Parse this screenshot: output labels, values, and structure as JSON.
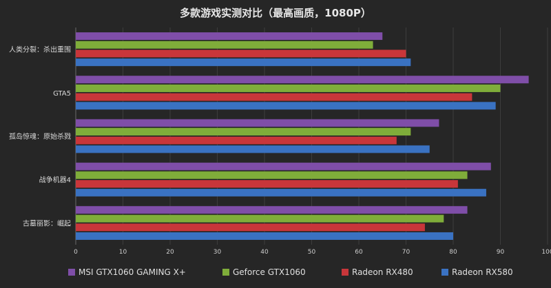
{
  "chart_data": {
    "type": "bar",
    "orientation": "horizontal",
    "title": "多款游戏实测对比（最高画质，1080P）",
    "categories": [
      "人类分裂：杀出重围",
      "GTA5",
      "孤岛惊魂：原始杀戮",
      "战争机器4",
      "古墓丽影：崛起"
    ],
    "series": [
      {
        "name": "MSI GTX1060 GAMING X+",
        "color": "#7f4ea8",
        "values": [
          65,
          96,
          77,
          88,
          83
        ]
      },
      {
        "name": "Geforce GTX1060",
        "color": "#7fad3a",
        "values": [
          63,
          90,
          71,
          83,
          78
        ]
      },
      {
        "name": "Radeon RX480",
        "color": "#c8363a",
        "values": [
          70,
          84,
          68,
          81,
          74
        ]
      },
      {
        "name": "Radeon RX580",
        "color": "#3a72c2",
        "values": [
          71,
          89,
          75,
          87,
          80
        ]
      }
    ],
    "xlim": [
      0,
      100
    ],
    "xticks": [
      0,
      10,
      20,
      30,
      40,
      50,
      60,
      70,
      80,
      90,
      100
    ],
    "grid": true,
    "legend_position": "bottom"
  }
}
